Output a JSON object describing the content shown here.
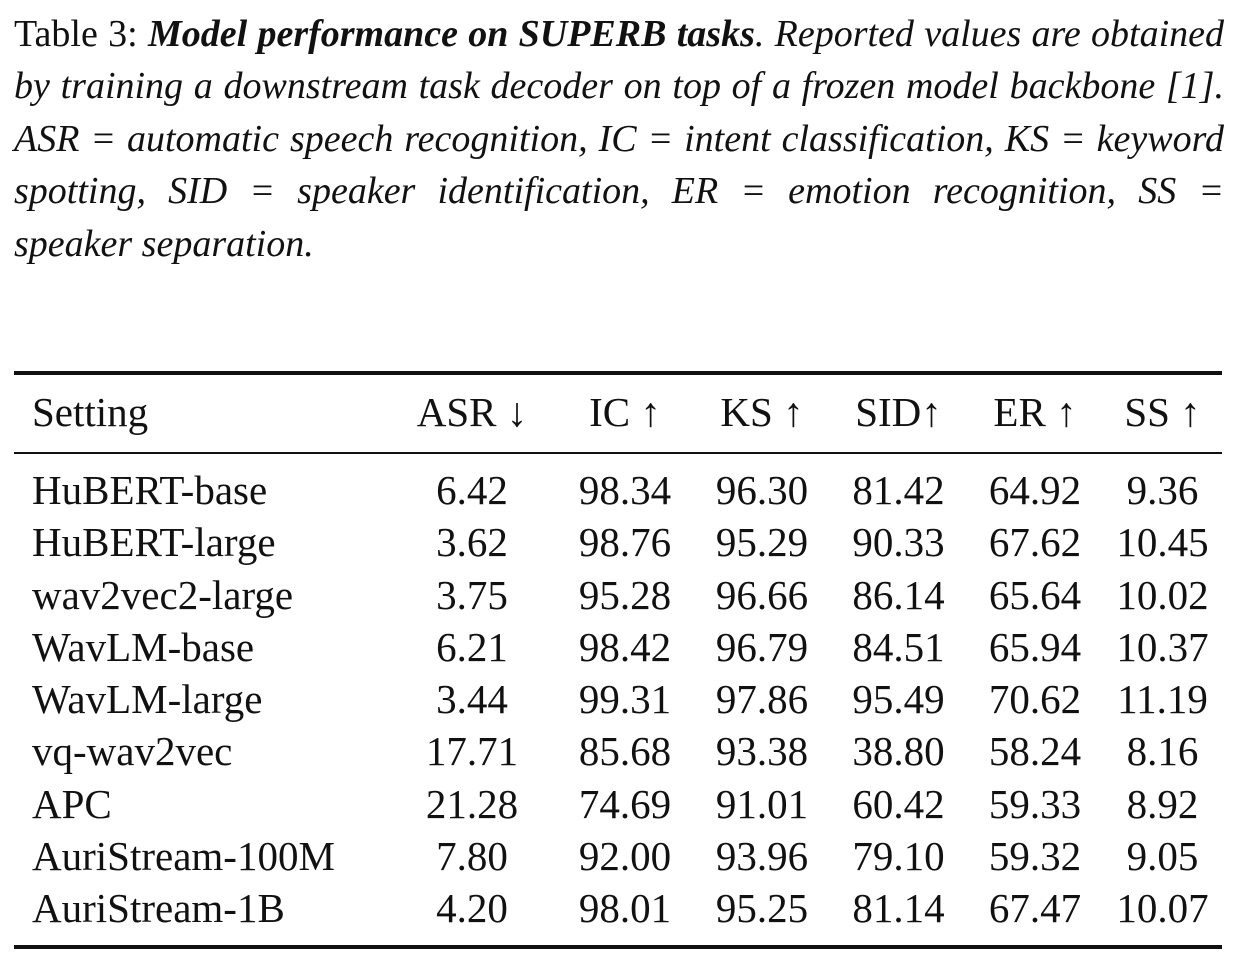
{
  "caption": {
    "label": "Table 3:",
    "title": "Model performance on SUPERB tasks",
    "body": ". Reported values are obtained by training a downstream task decoder on top of a frozen model backbone [1]. ASR = automatic speech recognition, IC = intent classification, KS = keyword spotting, SID = speaker identification, ER = emotion recognition, SS = speaker separation."
  },
  "table": {
    "headers": [
      "Setting",
      "ASR ↓",
      "IC ↑",
      "KS ↑",
      "SID↑",
      "ER ↑",
      "SS ↑"
    ],
    "rows": [
      {
        "setting": "HuBERT-base",
        "values": [
          "6.42",
          "98.34",
          "96.30",
          "81.42",
          "64.92",
          "9.36"
        ],
        "bold": false
      },
      {
        "setting": "HuBERT-large",
        "values": [
          "3.62",
          "98.76",
          "95.29",
          "90.33",
          "67.62",
          "10.45"
        ],
        "bold": false
      },
      {
        "setting": "wav2vec2-large",
        "values": [
          "3.75",
          "95.28",
          "96.66",
          "86.14",
          "65.64",
          "10.02"
        ],
        "bold": false
      },
      {
        "setting": "WavLM-base",
        "values": [
          "6.21",
          "98.42",
          "96.79",
          "84.51",
          "65.94",
          "10.37"
        ],
        "bold": false
      },
      {
        "setting": "WavLM-large",
        "values": [
          "3.44",
          "99.31",
          "97.86",
          "95.49",
          "70.62",
          "11.19"
        ],
        "bold": true
      },
      {
        "setting": "vq-wav2vec",
        "values": [
          "17.71",
          "85.68",
          "93.38",
          "38.80",
          "58.24",
          "8.16"
        ],
        "bold": false
      },
      {
        "setting": "APC",
        "values": [
          "21.28",
          "74.69",
          "91.01",
          "60.42",
          "59.33",
          "8.92"
        ],
        "bold": false
      },
      {
        "setting": "AuriStream-100M",
        "values": [
          "7.80",
          "92.00",
          "93.96",
          "79.10",
          "59.32",
          "9.05"
        ],
        "bold": false
      },
      {
        "setting": "AuriStream-1B",
        "values": [
          "4.20",
          "98.01",
          "95.25",
          "81.14",
          "67.47",
          "10.07"
        ],
        "bold": false
      }
    ]
  }
}
